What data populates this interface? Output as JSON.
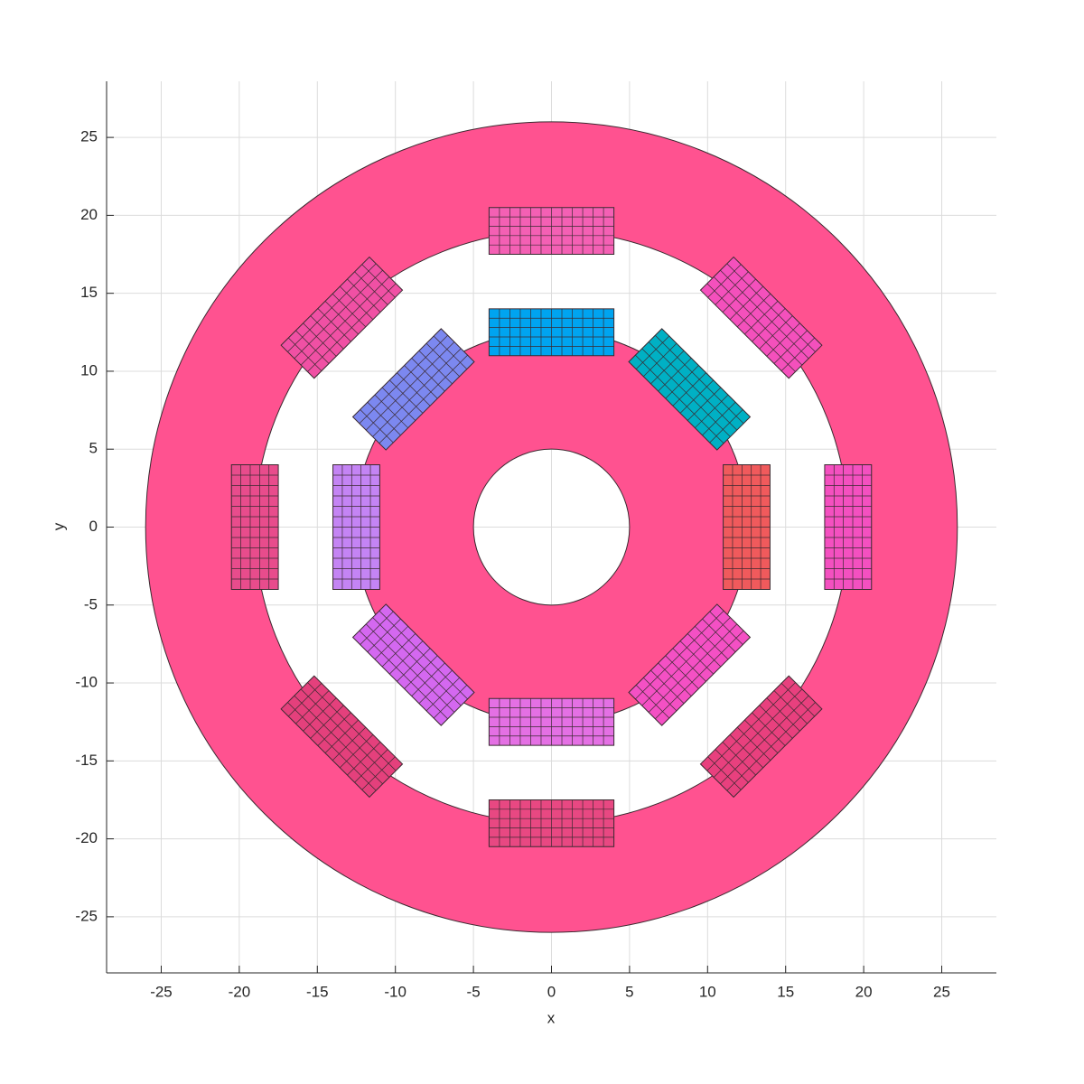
{
  "chart_data": {
    "type": "mesh",
    "xlabel": "x",
    "ylabel": "y",
    "xlim": [
      -28.5,
      28.5
    ],
    "ylim": [
      -28.6,
      28.6
    ],
    "xticks": [
      -25,
      -20,
      -15,
      -10,
      -5,
      0,
      5,
      10,
      15,
      20,
      25
    ],
    "yticks": [
      -25,
      -20,
      -15,
      -10,
      -5,
      0,
      5,
      10,
      15,
      20,
      25
    ],
    "grid": true,
    "mesh_color": "#ff5290",
    "stator": {
      "outer_radius": 26,
      "inner_radius": 19
    },
    "rotor": {
      "outer_radius": 12.6,
      "inner_radius": 5
    },
    "coils": [
      {
        "angle": 90,
        "radius": 19,
        "width": 8,
        "depth": 3,
        "color": "#f460b4"
      },
      {
        "angle": 45,
        "radius": 19,
        "width": 8,
        "depth": 3,
        "color": "#f450bc"
      },
      {
        "angle": 0,
        "radius": 19,
        "width": 8,
        "depth": 3,
        "color": "#f450c0"
      },
      {
        "angle": -45,
        "radius": 19,
        "width": 8,
        "depth": 3,
        "color": "#e8407e"
      },
      {
        "angle": -90,
        "radius": 19,
        "width": 8,
        "depth": 3,
        "color": "#e84882"
      },
      {
        "angle": -135,
        "radius": 19,
        "width": 8,
        "depth": 3,
        "color": "#e4407c"
      },
      {
        "angle": 180,
        "radius": 19,
        "width": 8,
        "depth": 3,
        "color": "#e84c8c"
      },
      {
        "angle": 135,
        "radius": 19,
        "width": 8,
        "depth": 3,
        "color": "#f050a4"
      },
      {
        "angle": 90,
        "radius": 12.5,
        "width": 8,
        "depth": 3,
        "color": "#00a4f0"
      },
      {
        "angle": 45,
        "radius": 12.5,
        "width": 8,
        "depth": 3,
        "color": "#00b0c4"
      },
      {
        "angle": 0,
        "radius": 12.5,
        "width": 8,
        "depth": 3,
        "color": "#f05a5c"
      },
      {
        "angle": -45,
        "radius": 12.5,
        "width": 8,
        "depth": 3,
        "color": "#f450c4"
      },
      {
        "angle": -90,
        "radius": 12.5,
        "width": 8,
        "depth": 3,
        "color": "#e470e4"
      },
      {
        "angle": -135,
        "radius": 12.5,
        "width": 8,
        "depth": 3,
        "color": "#d468f0"
      },
      {
        "angle": 180,
        "radius": 12.5,
        "width": 8,
        "depth": 3,
        "color": "#c484f4"
      },
      {
        "angle": 135,
        "radius": 12.5,
        "width": 8,
        "depth": 3,
        "color": "#7c88f0"
      }
    ]
  }
}
